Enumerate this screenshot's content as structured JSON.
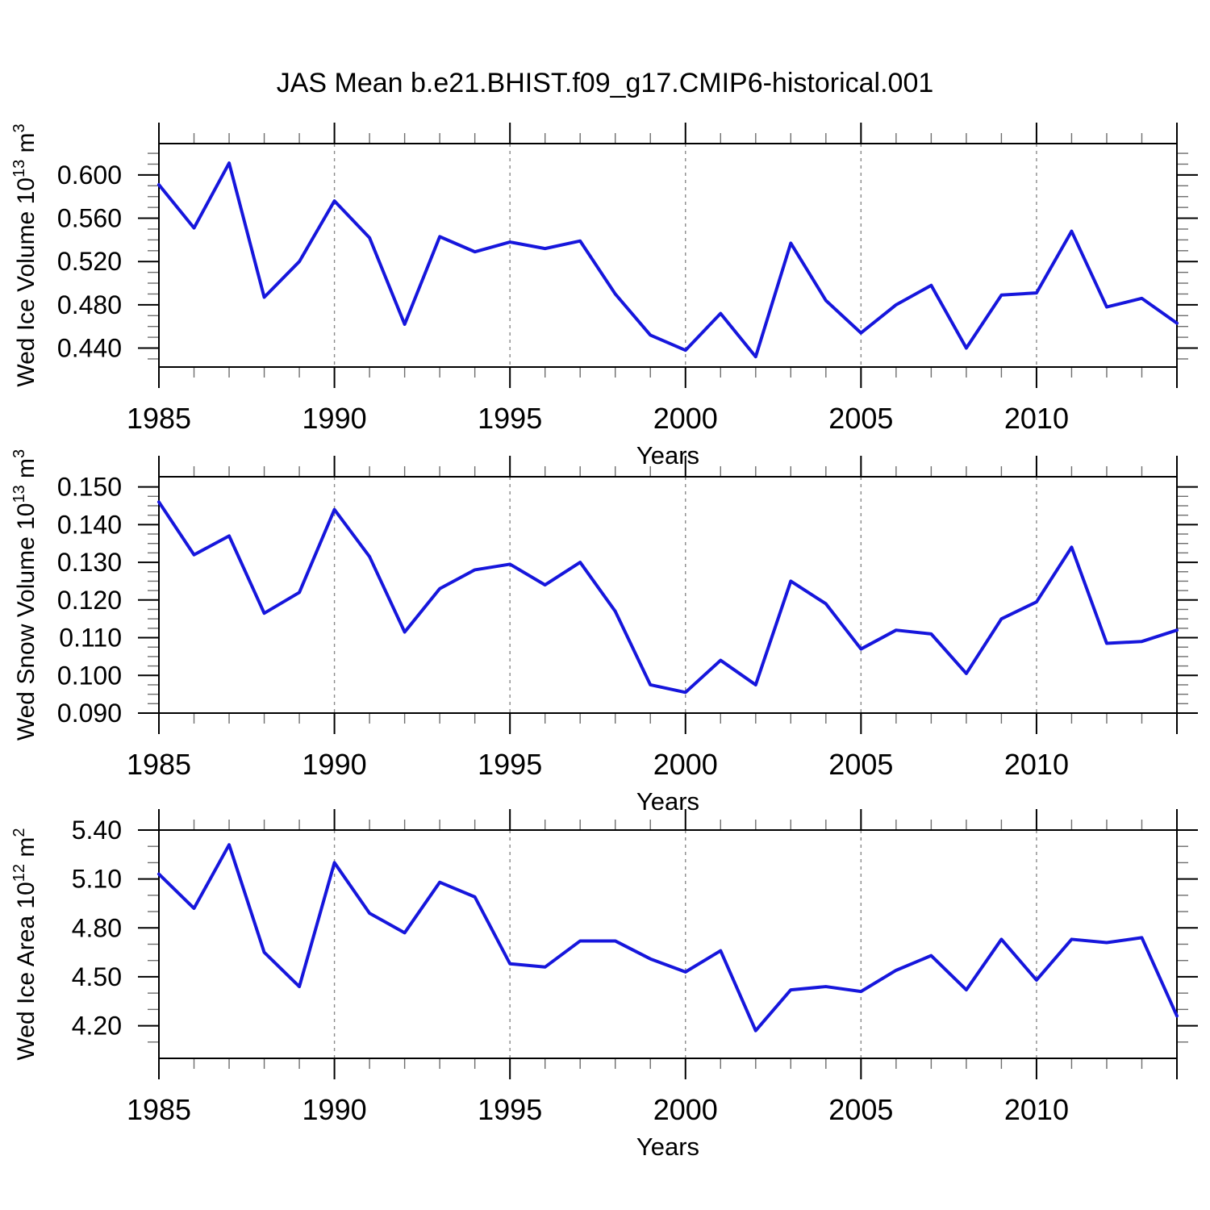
{
  "title": "JAS Mean b.e21.BHIST.f09_g17.CMIP6-historical.001",
  "colors": {
    "line": "#1616dc",
    "grid": "#8a8a8a",
    "frame": "#000000",
    "minor_tick": "#6e6e6e"
  },
  "chart_data": [
    {
      "type": "line",
      "name": "wed-ice-volume",
      "title": "",
      "xlabel": "Years",
      "ylabel_parts": [
        {
          "t": "Wed Ice Volume 10",
          "sup": false
        },
        {
          "t": "13",
          "sup": true
        },
        {
          "t": " m",
          "sup": false
        },
        {
          "t": "3",
          "sup": true
        }
      ],
      "x": [
        1985,
        1986,
        1987,
        1988,
        1989,
        1990,
        1991,
        1992,
        1993,
        1994,
        1995,
        1996,
        1997,
        1998,
        1999,
        2000,
        2001,
        2002,
        2003,
        2004,
        2005,
        2006,
        2007,
        2008,
        2009,
        2010,
        2011,
        2012,
        2013,
        2014
      ],
      "values": [
        0.591,
        0.551,
        0.611,
        0.487,
        0.52,
        0.576,
        0.542,
        0.462,
        0.543,
        0.529,
        0.538,
        0.532,
        0.539,
        0.49,
        0.452,
        0.438,
        0.472,
        0.432,
        0.537,
        0.484,
        0.454,
        0.48,
        0.498,
        0.44,
        0.489,
        0.491,
        0.548,
        0.478,
        0.486,
        0.463
      ],
      "xlim": [
        1985,
        2014
      ],
      "ylim": [
        0.4225,
        0.629
      ],
      "ytick_values": [
        0.44,
        0.48,
        0.52,
        0.56,
        0.6
      ],
      "ytick_labels": [
        "0.440",
        "0.480",
        "0.520",
        "0.560",
        "0.600"
      ],
      "yminor_step": 0.01,
      "xtick_values": [
        1985,
        1990,
        1995,
        2000,
        2005,
        2010
      ],
      "xtick_labels": [
        "1985",
        "1990",
        "1995",
        "2000",
        "2005",
        "2010"
      ],
      "grid_years": [
        1990,
        1995,
        2000,
        2005,
        2010
      ],
      "grid_on": true,
      "legend": "none"
    },
    {
      "type": "line",
      "name": "wed-snow-volume",
      "title": "",
      "xlabel": "Years",
      "ylabel_parts": [
        {
          "t": "Wed Snow Volume 10",
          "sup": false
        },
        {
          "t": "13",
          "sup": true
        },
        {
          "t": " m",
          "sup": false
        },
        {
          "t": "3",
          "sup": true
        }
      ],
      "x": [
        1985,
        1986,
        1987,
        1988,
        1989,
        1990,
        1991,
        1992,
        1993,
        1994,
        1995,
        1996,
        1997,
        1998,
        1999,
        2000,
        2001,
        2002,
        2003,
        2004,
        2005,
        2006,
        2007,
        2008,
        2009,
        2010,
        2011,
        2012,
        2013,
        2014
      ],
      "values": [
        0.146,
        0.132,
        0.137,
        0.1165,
        0.122,
        0.144,
        0.1315,
        0.1115,
        0.123,
        0.128,
        0.1295,
        0.124,
        0.13,
        0.117,
        0.0975,
        0.0955,
        0.104,
        0.0975,
        0.125,
        0.119,
        0.107,
        0.112,
        0.111,
        0.1005,
        0.115,
        0.1195,
        0.134,
        0.1085,
        0.109,
        0.112
      ],
      "xlim": [
        1985,
        2014
      ],
      "ylim": [
        0.09,
        0.1527
      ],
      "ytick_values": [
        0.09,
        0.1,
        0.11,
        0.12,
        0.13,
        0.14,
        0.15
      ],
      "ytick_labels": [
        "0.090",
        "0.100",
        "0.110",
        "0.120",
        "0.130",
        "0.140",
        "0.150"
      ],
      "yminor_step": 0.0025,
      "xtick_values": [
        1985,
        1990,
        1995,
        2000,
        2005,
        2010
      ],
      "xtick_labels": [
        "1985",
        "1990",
        "1995",
        "2000",
        "2005",
        "2010"
      ],
      "grid_years": [
        1990,
        1995,
        2000,
        2005,
        2010
      ],
      "grid_on": true,
      "legend": "none"
    },
    {
      "type": "line",
      "name": "wed-ice-area",
      "title": "",
      "xlabel": "Years",
      "ylabel_parts": [
        {
          "t": "Wed Ice Area 10",
          "sup": false
        },
        {
          "t": "12",
          "sup": true
        },
        {
          "t": " m",
          "sup": false
        },
        {
          "t": "2",
          "sup": true
        }
      ],
      "x": [
        1985,
        1986,
        1987,
        1988,
        1989,
        1990,
        1991,
        1992,
        1993,
        1994,
        1995,
        1996,
        1997,
        1998,
        1999,
        2000,
        2001,
        2002,
        2003,
        2004,
        2005,
        2006,
        2007,
        2008,
        2009,
        2010,
        2011,
        2012,
        2013,
        2014
      ],
      "values": [
        5.13,
        4.92,
        5.31,
        4.65,
        4.44,
        5.2,
        4.89,
        4.77,
        5.08,
        4.99,
        4.58,
        4.56,
        4.72,
        4.72,
        4.61,
        4.53,
        4.66,
        4.17,
        4.42,
        4.44,
        4.41,
        4.54,
        4.63,
        4.42,
        4.73,
        4.48,
        4.73,
        4.71,
        4.74,
        4.26
      ],
      "xlim": [
        1985,
        2014
      ],
      "ylim": [
        4.0,
        5.4
      ],
      "ytick_values": [
        4.2,
        4.5,
        4.8,
        5.1,
        5.4
      ],
      "ytick_labels": [
        "4.20",
        "4.50",
        "4.80",
        "5.10",
        "5.40"
      ],
      "yminor_step": 0.1,
      "xtick_values": [
        1985,
        1990,
        1995,
        2000,
        2005,
        2010
      ],
      "xtick_labels": [
        "1985",
        "1990",
        "1995",
        "2000",
        "2005",
        "2010"
      ],
      "grid_years": [
        1990,
        1995,
        2000,
        2005,
        2010
      ],
      "grid_on": true,
      "legend": "none"
    }
  ]
}
